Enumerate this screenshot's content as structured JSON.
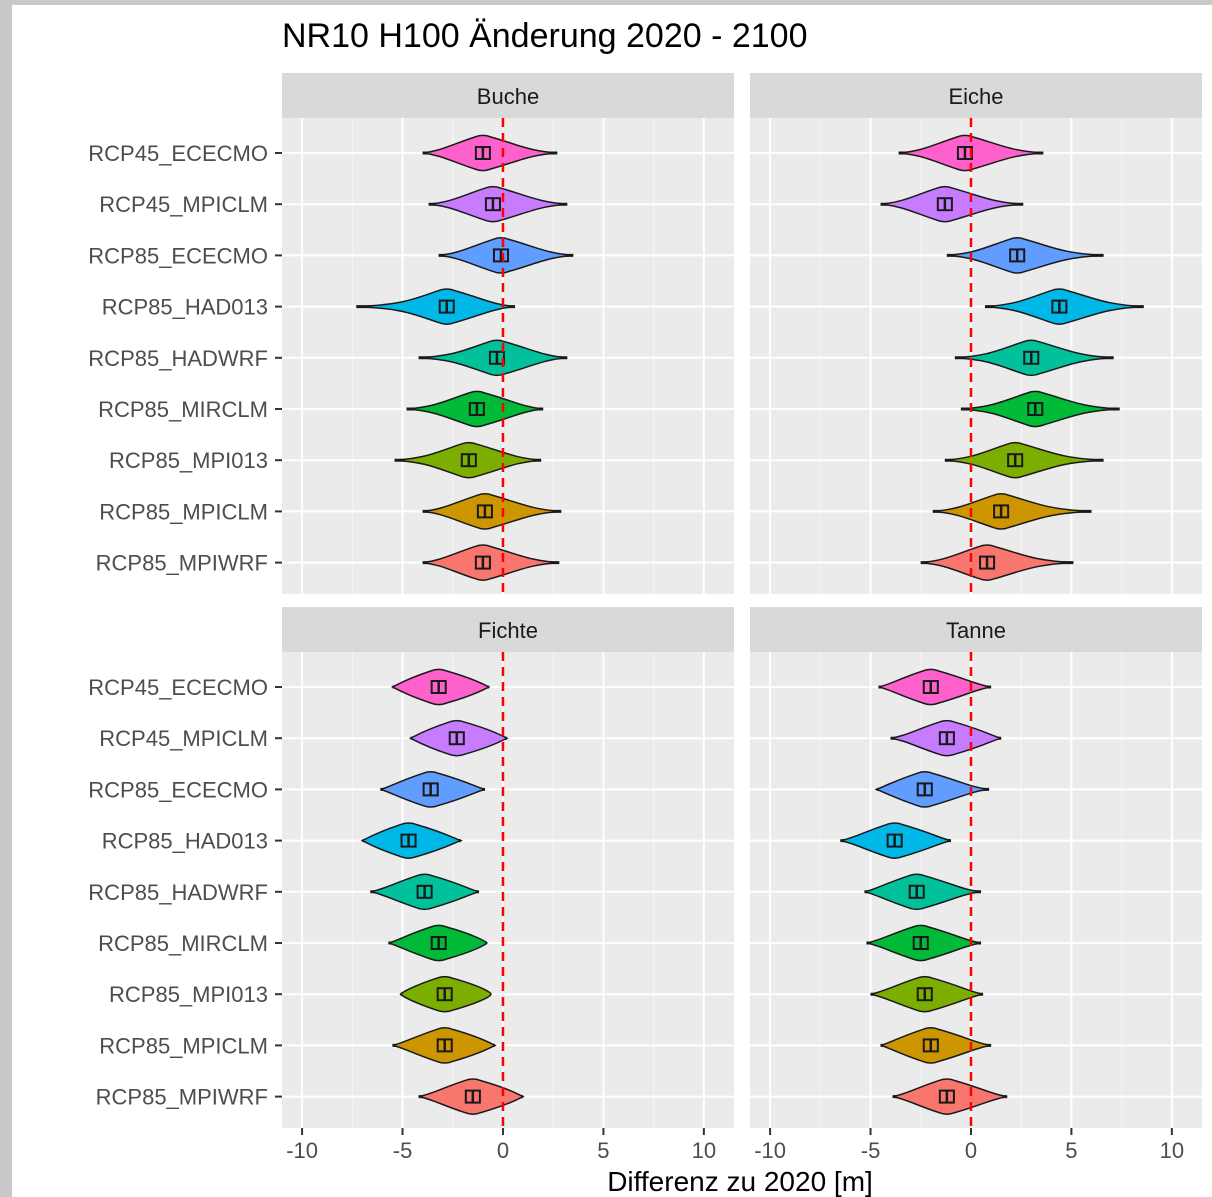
{
  "chart_data": {
    "type": "violin",
    "title": "NR10 H100 Änderung 2020 - 2100",
    "xlabel": "Differenz zu 2020 [m]",
    "ylabel": "",
    "xlim": [
      -11,
      11.5
    ],
    "xticks": [
      -10,
      -5,
      0,
      5,
      10
    ],
    "reference_line": {
      "x": 0,
      "color": "#ff0000",
      "style": "dashed"
    },
    "grid": true,
    "legend": "none",
    "categories": [
      "RCP45_ECECMO",
      "RCP45_MPICLM",
      "RCP85_ECECMO",
      "RCP85_HAD013",
      "RCP85_HADWRF",
      "RCP85_MIRCLM",
      "RCP85_MPI013",
      "RCP85_MPICLM",
      "RCP85_MPIWRF"
    ],
    "category_colors": [
      "#ff61cc",
      "#c77cff",
      "#619cff",
      "#00b8e7",
      "#00c19a",
      "#00ba38",
      "#7cae00",
      "#cd9600",
      "#f8766d"
    ],
    "panels": [
      {
        "name": "Buche",
        "median": [
          -1.0,
          -0.5,
          -0.1,
          -2.8,
          -0.3,
          -1.3,
          -1.7,
          -0.9,
          -1.0
        ],
        "whisker_min": [
          -4.0,
          -3.7,
          -3.2,
          -7.3,
          -4.2,
          -4.8,
          -5.4,
          -4.0,
          -4.0
        ],
        "whisker_max": [
          2.7,
          3.2,
          3.5,
          0.6,
          3.2,
          2.0,
          1.9,
          2.9,
          2.8
        ]
      },
      {
        "name": "Eiche",
        "median": [
          -0.3,
          -1.3,
          2.3,
          4.4,
          3.0,
          3.2,
          2.2,
          1.5,
          0.8
        ],
        "whisker_min": [
          -3.6,
          -4.5,
          -1.2,
          0.7,
          -0.8,
          -0.5,
          -1.3,
          -1.9,
          -2.5
        ],
        "whisker_max": [
          3.6,
          2.6,
          6.6,
          8.6,
          7.1,
          7.4,
          6.6,
          6.0,
          5.1
        ]
      },
      {
        "name": "Fichte",
        "median": [
          -3.2,
          -2.3,
          -3.6,
          -4.7,
          -3.9,
          -3.2,
          -2.9,
          -2.9,
          -1.5
        ],
        "whisker_min": [
          -5.5,
          -4.6,
          -6.1,
          -7.0,
          -6.6,
          -5.7,
          -5.1,
          -5.5,
          -4.2
        ],
        "whisker_max": [
          -0.7,
          0.2,
          -0.9,
          -2.1,
          -1.2,
          -0.8,
          -0.6,
          -0.4,
          1.0
        ]
      },
      {
        "name": "Tanne",
        "median": [
          -2.0,
          -1.2,
          -2.3,
          -3.8,
          -2.7,
          -2.5,
          -2.3,
          -2.0,
          -1.2
        ],
        "whisker_min": [
          -4.6,
          -4.0,
          -4.7,
          -6.5,
          -5.3,
          -5.2,
          -5.0,
          -4.5,
          -3.9
        ],
        "whisker_max": [
          1.0,
          1.5,
          0.9,
          -1.0,
          0.5,
          0.5,
          0.6,
          1.0,
          1.8
        ]
      }
    ]
  }
}
